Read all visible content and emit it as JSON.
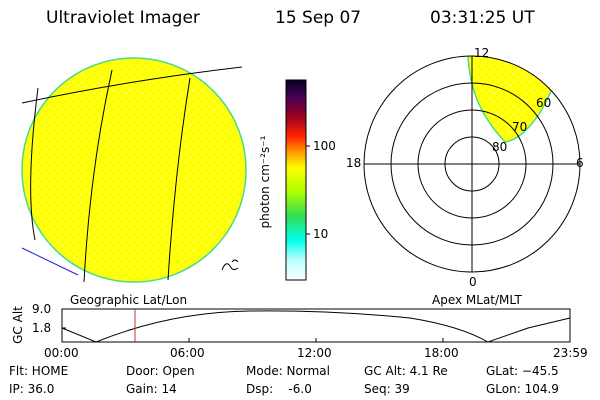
{
  "header": {
    "instrument": "Ultraviolet Imager",
    "date": "15 Sep 07",
    "time": "03:31:25 UT"
  },
  "geographic_panel": {
    "label": "Geographic Lat/Lon"
  },
  "apex_panel": {
    "label": "Apex MLat/MLT",
    "mlt_labels": {
      "top": "12",
      "left": "18",
      "right": "6",
      "bottom": "0"
    },
    "mlat_labels": [
      "60",
      "70",
      "80"
    ]
  },
  "colorbar": {
    "unit_label": "photon cm⁻²s⁻¹",
    "ticks": [
      "100",
      "10"
    ],
    "colors": [
      "#000033",
      "#550066",
      "#990000",
      "#ff0000",
      "#ff9900",
      "#ffff00",
      "#88ff00",
      "#00cc66",
      "#00ffff",
      "#ffffff"
    ]
  },
  "altitude_plot": {
    "ylabel": "GC Alt",
    "yticks": [
      "9.0",
      "1.8"
    ],
    "xticks": [
      "00:00",
      "06:00",
      "12:00",
      "18:00",
      "23:59"
    ],
    "marker_time": "03:31"
  },
  "footer": {
    "flt": "Flt: HOME",
    "ip": "IP: 36.0",
    "door": "Door: Open",
    "gain": "Gain: 14",
    "mode": "Mode: Normal",
    "dsp": "Dsp:    -6.0",
    "gc_alt": "GC Alt: 4.1 Re",
    "seq": "Seq: 39",
    "glat": "GLat: −45.5",
    "glon": "GLon: 104.9"
  },
  "colors": {
    "image_fill": "#ffff00",
    "image_edge": "#44dd88",
    "marker": "#cc3333"
  }
}
